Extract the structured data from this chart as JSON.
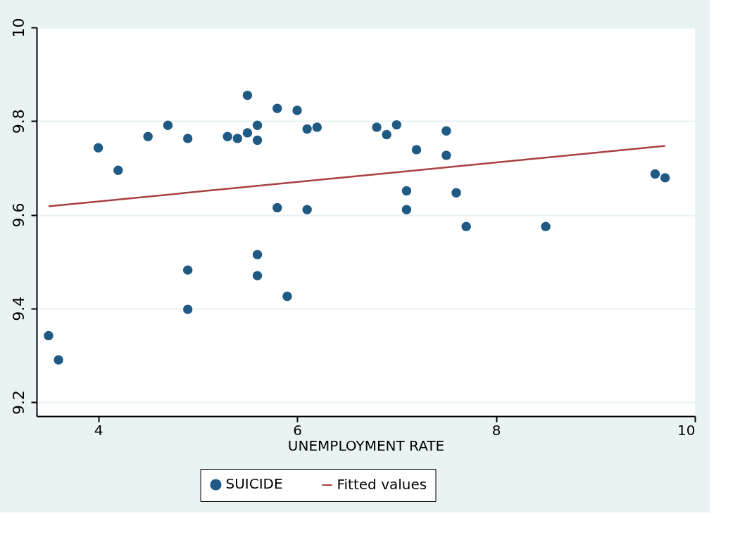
{
  "chart_data": {
    "type": "scatter",
    "xlabel": "UNEMPLOYMENT RATE",
    "xlim": [
      3.38,
      10
    ],
    "ylim": [
      9.17,
      10
    ],
    "xticks": [
      4,
      6,
      8,
      10
    ],
    "yticks": [
      9.2,
      9.4,
      9.6,
      9.8,
      10
    ],
    "grid": "y",
    "legend": "bottom",
    "series": [
      {
        "name": "SUICIDE",
        "marker": "circle",
        "color": "#1f5a85",
        "x": [
          4.0,
          4.2,
          4.5,
          4.7,
          4.9,
          5.3,
          5.4,
          5.5,
          5.5,
          5.6,
          5.6,
          5.8,
          6.0,
          6.1,
          6.2,
          5.8,
          6.1,
          6.8,
          6.9,
          7.0,
          7.5,
          7.2,
          7.5,
          7.1,
          7.1,
          7.6,
          9.6,
          9.7,
          7.7,
          8.5,
          4.9,
          4.9,
          5.6,
          5.6,
          5.9,
          3.5,
          3.6
        ],
        "values": [
          9.743,
          9.695,
          9.767,
          9.791,
          9.763,
          9.767,
          9.763,
          9.855,
          9.775,
          9.791,
          9.759,
          9.827,
          9.823,
          9.783,
          9.787,
          9.615,
          9.611,
          9.787,
          9.771,
          9.792,
          9.779,
          9.739,
          9.727,
          9.651,
          9.611,
          9.647,
          9.687,
          9.679,
          9.575,
          9.575,
          9.482,
          9.398,
          9.515,
          9.47,
          9.426,
          9.342,
          9.29
        ]
      },
      {
        "name": "Fitted values",
        "type": "line",
        "color": "#a8403f",
        "x": [
          3.5,
          9.7
        ],
        "values": [
          9.618,
          9.747
        ]
      }
    ]
  }
}
